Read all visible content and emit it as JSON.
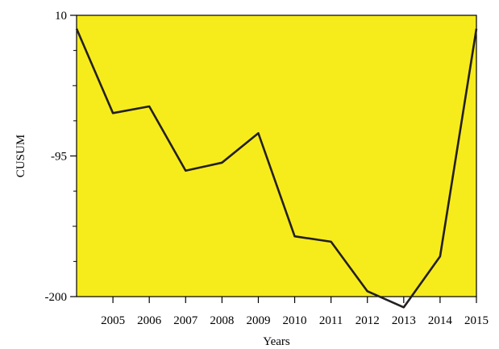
{
  "chart_data": {
    "type": "line",
    "title": "",
    "xlabel": "Years",
    "ylabel": "CUSUM",
    "x": [
      2004,
      2005,
      2006,
      2007,
      2008,
      2009,
      2010,
      2011,
      2012,
      2013,
      2014,
      2015
    ],
    "x_tick_labels": [
      "2005",
      "2006",
      "2007",
      "2008",
      "2009",
      "2010",
      "2011",
      "2012",
      "2013",
      "2014",
      "2015"
    ],
    "y_tick_labels": [
      "10",
      "-95",
      "-200"
    ],
    "y_tick_values": [
      10,
      -95,
      -200
    ],
    "ylim": [
      -200,
      10
    ],
    "xlim": [
      2004,
      2015
    ],
    "series": [
      {
        "values": [
          0,
          -63,
          -58,
          -106,
          -100,
          -78,
          -155,
          -159,
          -196,
          -208,
          -170,
          0
        ]
      }
    ],
    "colors": {
      "plot_background": "#F7EC1B",
      "line": "#231F20",
      "axis": "#000000"
    },
    "grid": false,
    "legend": "none"
  }
}
